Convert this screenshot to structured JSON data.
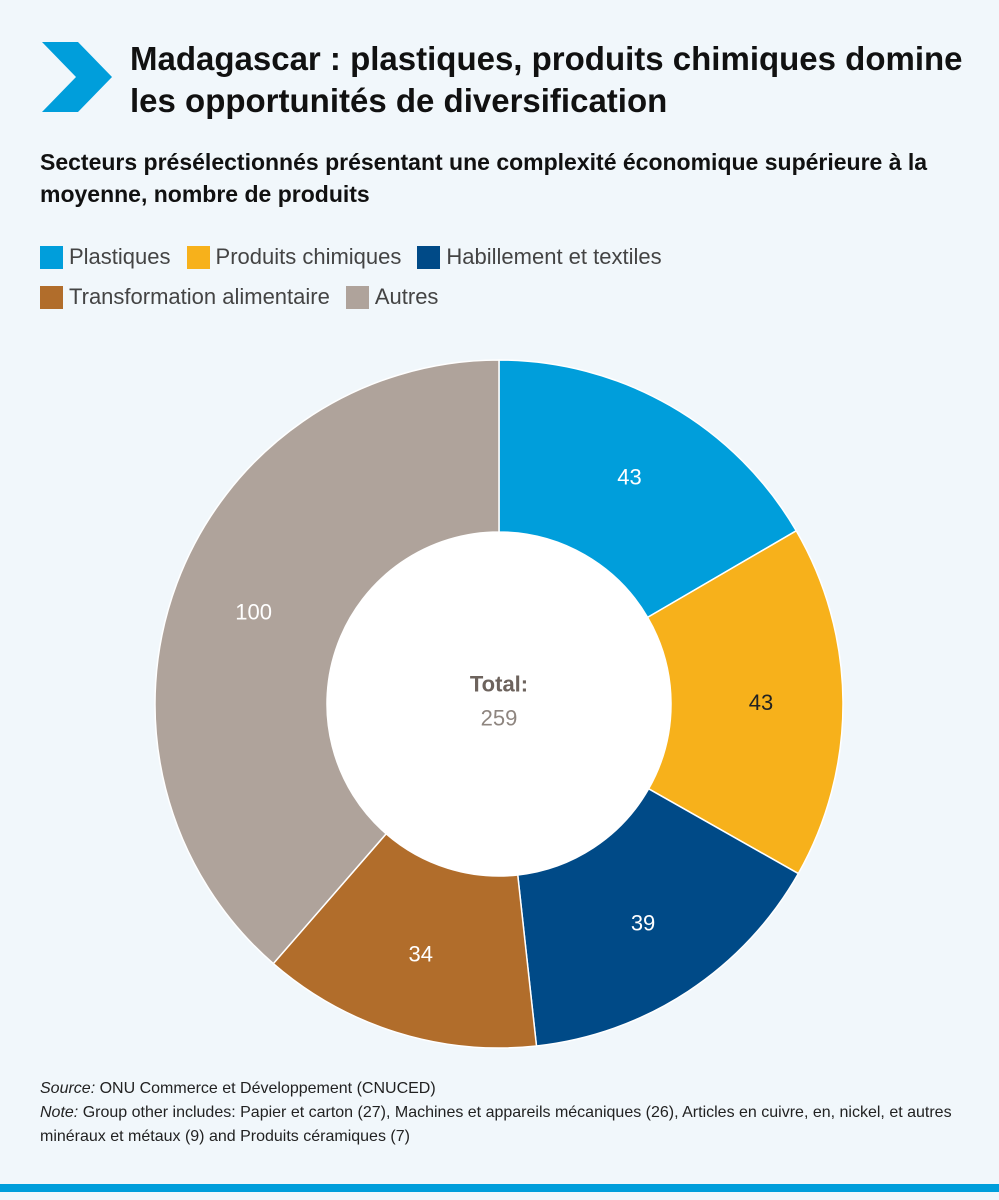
{
  "title": "Madagascar : plastiques, produits chimiques domine les opportunités de diversification",
  "subtitle": "Secteurs présélectionnés présentant une complexité économique supérieure à la moyenne, nombre de produits",
  "accent_color": "#009edb",
  "icon": "chevron-right-icon",
  "legend": [
    {
      "label": "Plastiques",
      "color": "#009edb"
    },
    {
      "label": "Produits chimiques",
      "color": "#f7b11b"
    },
    {
      "label": "Habillement et textiles",
      "color": "#004a87"
    },
    {
      "label": "Transformation alimentaire",
      "color": "#b16d2b"
    },
    {
      "label": "Autres",
      "color": "#afa39b"
    }
  ],
  "chart_data": {
    "type": "pie",
    "variant": "donut",
    "categories": [
      "Plastiques",
      "Produits chimiques",
      "Habillement et textiles",
      "Transformation alimentaire",
      "Autres"
    ],
    "values": [
      43,
      43,
      39,
      34,
      100
    ],
    "colors": [
      "#009edb",
      "#f7b11b",
      "#004a87",
      "#b16d2b",
      "#afa39b"
    ],
    "data_labels": [
      "43",
      "43",
      "39",
      "34",
      "100"
    ],
    "data_label_colors": [
      "#ffffff",
      "#222222",
      "#ffffff",
      "#ffffff",
      "#ffffff"
    ],
    "center_label": "Total:",
    "center_value": "259",
    "legend_position": "top"
  },
  "notes": {
    "source_label": "Source:",
    "source_text": " ONU Commerce et Développement (CNUCED)",
    "note_label": "Note:",
    "note_text": " Group other includes: Papier et carton (27), Machines et appareils mécaniques (26), Articles en cuivre, en, nickel, et autres minéraux et métaux (9) and Produits céramiques (7)"
  }
}
